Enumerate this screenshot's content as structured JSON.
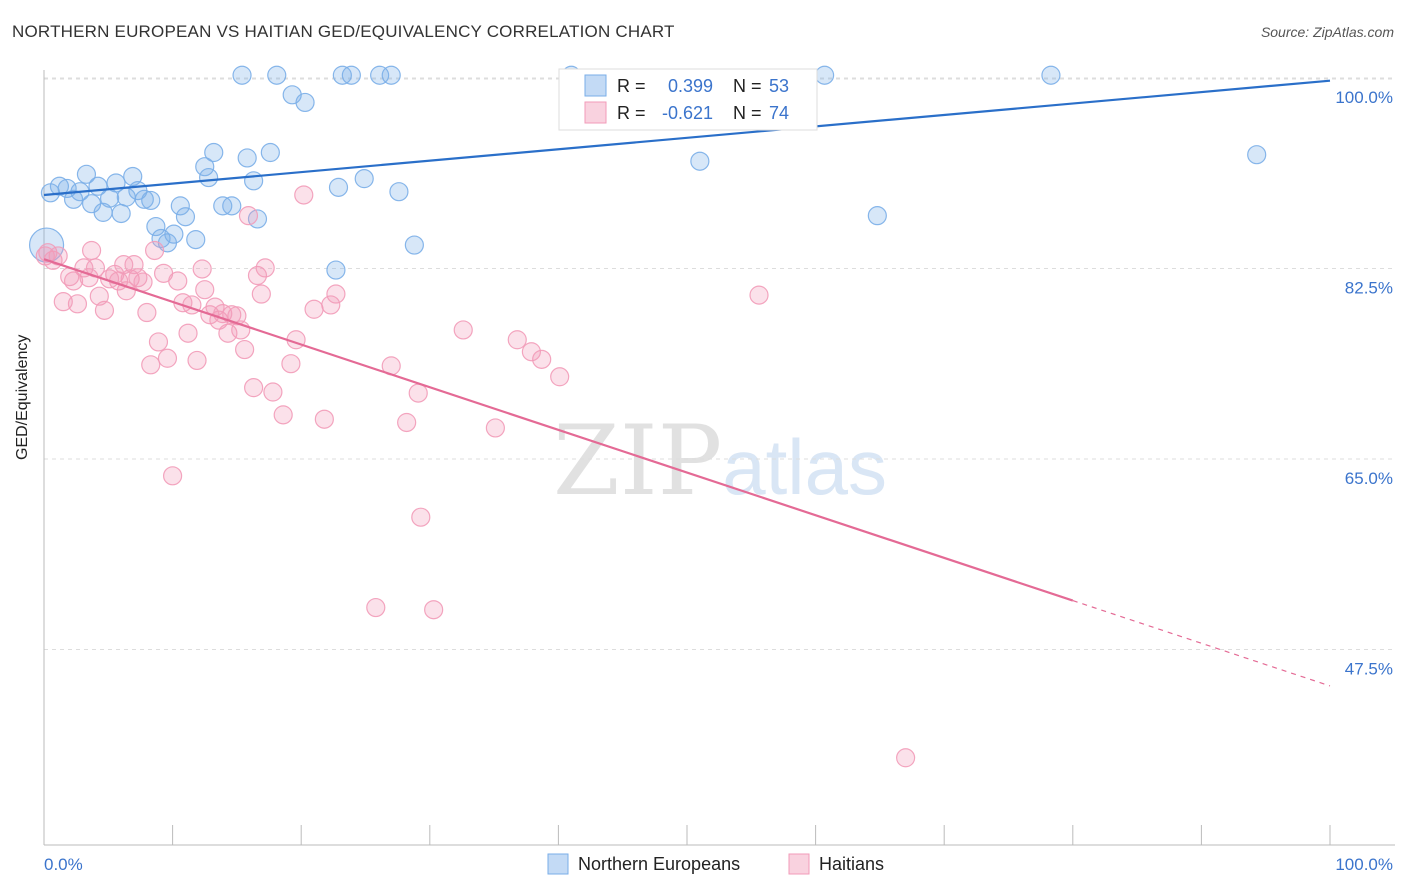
{
  "header": {
    "title": "NORTHERN EUROPEAN VS HAITIAN GED/EQUIVALENCY CORRELATION CHART",
    "source": "Source: ZipAtlas.com"
  },
  "watermark": {
    "zip": "ZIP",
    "atlas": "atlas"
  },
  "chart_data": {
    "type": "scatter",
    "title": "NORTHERN EUROPEAN VS HAITIAN GED/EQUIVALENCY CORRELATION CHART",
    "ylabel": "GED/Equivalency",
    "xlabel": "",
    "xlim": [
      0,
      100
    ],
    "ylim": [
      30,
      103
    ],
    "x_tick_labels": [
      "0.0%",
      "100.0%"
    ],
    "y_ticks": [
      {
        "value": 100.0,
        "label": "100.0%"
      },
      {
        "value": 82.5,
        "label": "82.5%"
      },
      {
        "value": 65.0,
        "label": "65.0%"
      },
      {
        "value": 47.5,
        "label": "47.5%"
      }
    ],
    "grid": true,
    "legend_placement": "top-center",
    "stats": [
      {
        "series": "Northern Europeans",
        "r_label": "R =",
        "r": "0.399",
        "n_label": "N =",
        "n": "53"
      },
      {
        "series": "Haitians",
        "r_label": "R =",
        "r": "-0.621",
        "n_label": "N =",
        "n": "74"
      }
    ],
    "series": [
      {
        "name": "Northern Europeans",
        "color": "#7aaee8",
        "line_color": "#2a6fc9",
        "trend": {
          "x0": 0,
          "y0": 91.0,
          "x1": 100,
          "y1": 101.5,
          "dashed_from": null
        },
        "points": [
          [
            0.5,
            91.2
          ],
          [
            1.2,
            91.8
          ],
          [
            1.8,
            91.6
          ],
          [
            2.3,
            90.6
          ],
          [
            2.8,
            91.3
          ],
          [
            3.3,
            92.9
          ],
          [
            3.7,
            90.2
          ],
          [
            4.2,
            91.8
          ],
          [
            4.6,
            89.4
          ],
          [
            5.1,
            90.7
          ],
          [
            5.6,
            92.1
          ],
          [
            6.0,
            89.3
          ],
          [
            6.4,
            90.8
          ],
          [
            6.9,
            92.7
          ],
          [
            7.3,
            91.4
          ],
          [
            7.8,
            90.6
          ],
          [
            8.3,
            90.5
          ],
          [
            8.7,
            88.1
          ],
          [
            9.1,
            87.0
          ],
          [
            9.6,
            86.6
          ],
          [
            10.1,
            87.4
          ],
          [
            10.6,
            90.0
          ],
          [
            11.0,
            89.0
          ],
          [
            11.8,
            86.9
          ],
          [
            12.5,
            93.6
          ],
          [
            12.8,
            92.6
          ],
          [
            13.2,
            94.9
          ],
          [
            13.9,
            90.0
          ],
          [
            14.6,
            90.0
          ],
          [
            15.8,
            94.4
          ],
          [
            16.3,
            92.3
          ],
          [
            16.6,
            88.8
          ],
          [
            17.6,
            94.9
          ],
          [
            15.4,
            102.0
          ],
          [
            18.1,
            102.0
          ],
          [
            19.3,
            100.2
          ],
          [
            20.3,
            99.5
          ],
          [
            22.7,
            84.1
          ],
          [
            22.9,
            91.7
          ],
          [
            23.2,
            102.0
          ],
          [
            23.9,
            102.0
          ],
          [
            24.9,
            92.5
          ],
          [
            26.1,
            102.0
          ],
          [
            27.0,
            102.0
          ],
          [
            27.6,
            91.3
          ],
          [
            28.8,
            86.4
          ],
          [
            41.0,
            102.0
          ],
          [
            51.0,
            94.1
          ],
          [
            60.7,
            102.0
          ],
          [
            64.8,
            89.1
          ],
          [
            78.3,
            102.0
          ],
          [
            94.3,
            94.7
          ],
          [
            0.2,
            86.4
          ]
        ]
      },
      {
        "name": "Haitians",
        "color": "#f29bb8",
        "line_color": "#e46a95",
        "trend": {
          "x0": 0,
          "y0": 85.1,
          "x1": 100,
          "y1": 45.9,
          "dashed_from": 80
        },
        "points": [
          [
            0.3,
            85.7
          ],
          [
            0.7,
            85.0
          ],
          [
            1.1,
            85.4
          ],
          [
            1.5,
            81.2
          ],
          [
            2.0,
            83.5
          ],
          [
            2.3,
            83.1
          ],
          [
            2.6,
            81.0
          ],
          [
            3.1,
            84.3
          ],
          [
            3.5,
            83.4
          ],
          [
            3.7,
            85.9
          ],
          [
            4.0,
            84.3
          ],
          [
            4.3,
            81.7
          ],
          [
            4.7,
            80.4
          ],
          [
            5.1,
            83.3
          ],
          [
            5.5,
            83.7
          ],
          [
            5.8,
            83.1
          ],
          [
            6.2,
            84.6
          ],
          [
            6.4,
            82.2
          ],
          [
            6.7,
            83.3
          ],
          [
            7.0,
            84.6
          ],
          [
            7.3,
            83.4
          ],
          [
            7.7,
            83.0
          ],
          [
            8.0,
            80.2
          ],
          [
            8.3,
            75.4
          ],
          [
            8.6,
            85.9
          ],
          [
            8.9,
            77.5
          ],
          [
            9.3,
            83.8
          ],
          [
            9.6,
            76.0
          ],
          [
            10.0,
            65.2
          ],
          [
            10.4,
            83.1
          ],
          [
            10.8,
            81.1
          ],
          [
            11.2,
            78.3
          ],
          [
            11.5,
            80.9
          ],
          [
            11.9,
            75.8
          ],
          [
            12.3,
            84.2
          ],
          [
            12.5,
            82.3
          ],
          [
            12.9,
            80.0
          ],
          [
            13.3,
            80.7
          ],
          [
            13.6,
            79.5
          ],
          [
            13.9,
            80.1
          ],
          [
            14.3,
            78.3
          ],
          [
            14.6,
            80.0
          ],
          [
            15.0,
            79.9
          ],
          [
            15.3,
            78.6
          ],
          [
            15.6,
            76.8
          ],
          [
            15.9,
            89.1
          ],
          [
            16.3,
            73.3
          ],
          [
            16.6,
            83.6
          ],
          [
            16.9,
            81.9
          ],
          [
            17.2,
            84.3
          ],
          [
            17.8,
            72.9
          ],
          [
            18.6,
            70.8
          ],
          [
            19.2,
            75.5
          ],
          [
            19.6,
            77.7
          ],
          [
            20.2,
            91.0
          ],
          [
            21.0,
            80.5
          ],
          [
            21.8,
            70.4
          ],
          [
            22.3,
            80.9
          ],
          [
            22.7,
            81.9
          ],
          [
            25.8,
            53.1
          ],
          [
            27.0,
            75.3
          ],
          [
            28.2,
            70.1
          ],
          [
            29.1,
            72.8
          ],
          [
            29.3,
            61.4
          ],
          [
            30.3,
            52.9
          ],
          [
            32.6,
            78.6
          ],
          [
            35.1,
            69.6
          ],
          [
            36.8,
            77.7
          ],
          [
            37.9,
            76.6
          ],
          [
            38.7,
            75.9
          ],
          [
            40.1,
            74.3
          ],
          [
            55.6,
            81.8
          ],
          [
            67.0,
            39.3
          ],
          [
            0.1,
            85.4
          ]
        ]
      }
    ]
  }
}
